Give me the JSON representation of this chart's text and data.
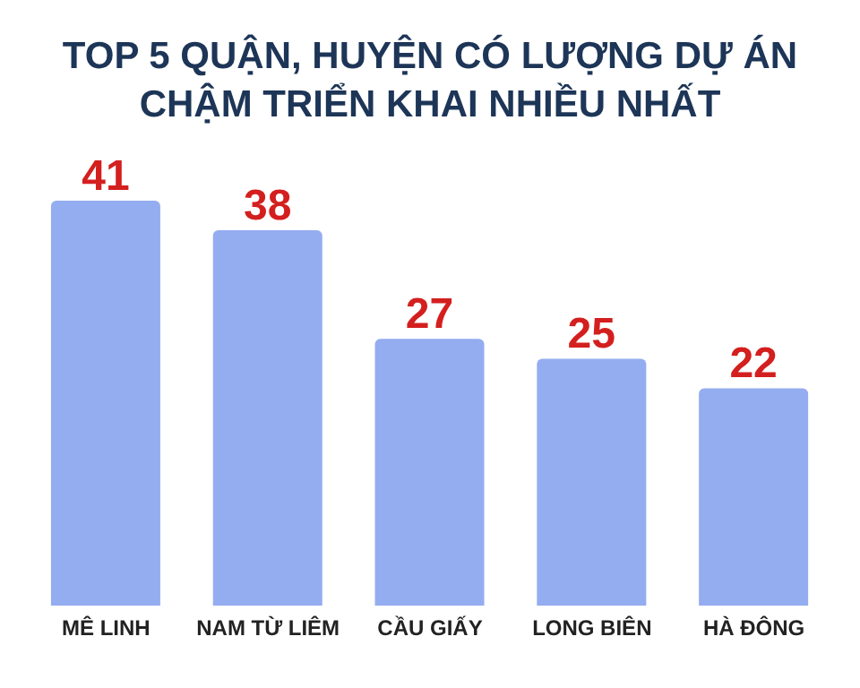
{
  "chart_data": {
    "type": "bar",
    "title": "TOP 5 QUẬN, HUYỆN CÓ LƯỢNG DỰ ÁN CHẬM TRIỂN KHAI NHIỀU NHẤT",
    "categories": [
      "MÊ LINH",
      "NAM TỪ LIÊM",
      "CẦU GIẤY",
      "LONG BIÊN",
      "HÀ ĐÔNG"
    ],
    "values": [
      41,
      38,
      27,
      25,
      22
    ],
    "color": "#94acf0",
    "data_labels": true
  }
}
